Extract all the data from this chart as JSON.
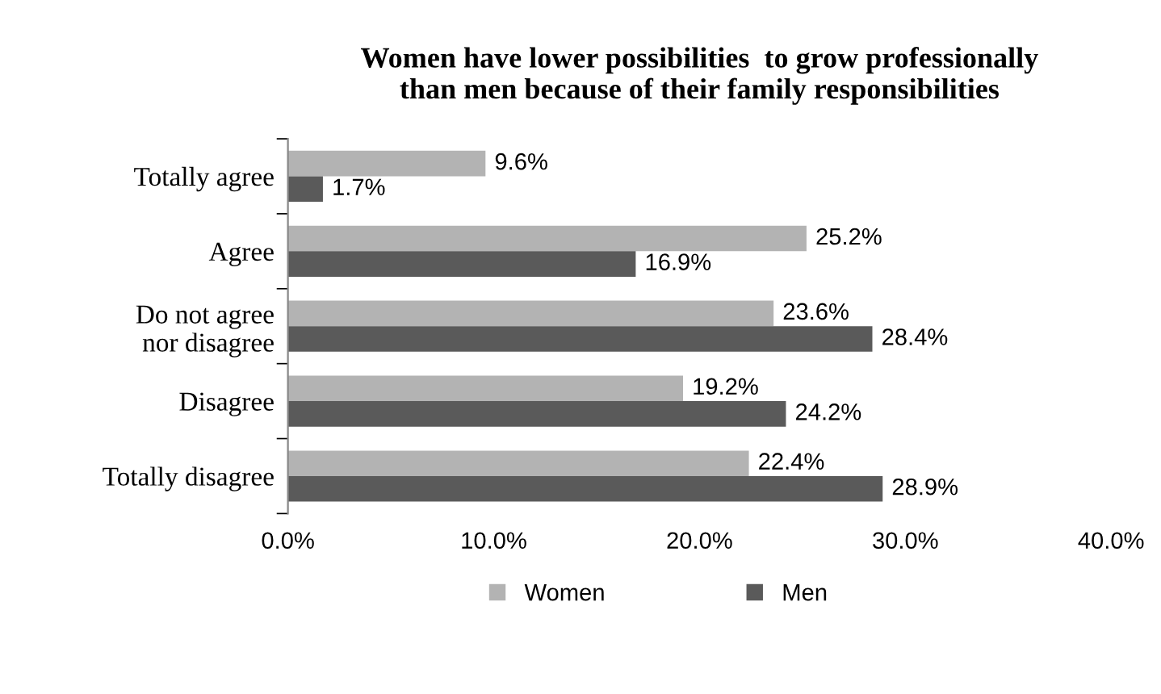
{
  "chart_data": {
    "type": "bar",
    "orientation": "horizontal",
    "title": "Women have lower possibilities  to grow professionally\nthan men because of their family responsibilities",
    "categories": [
      "Totally agree",
      "Agree",
      "Do not agree\nnor disagree",
      "Disagree",
      "Totally disagree"
    ],
    "series": [
      {
        "name": "Women",
        "color": "#b3b3b3",
        "values": [
          9.6,
          25.2,
          23.6,
          19.2,
          22.4
        ],
        "value_labels": [
          "9.6%",
          "25.2%",
          "23.6%",
          "19.2%",
          "22.4%"
        ]
      },
      {
        "name": "Men",
        "color": "#5a5a5a",
        "values": [
          1.7,
          16.9,
          28.4,
          24.2,
          28.9
        ],
        "value_labels": [
          "1.7%",
          "16.9%",
          "28.4%",
          "24.2%",
          "28.9%"
        ]
      }
    ],
    "xlim": [
      0,
      40
    ],
    "xticks": [
      {
        "value": 0,
        "label": "0.0%"
      },
      {
        "value": 10,
        "label": "10.0%"
      },
      {
        "value": 20,
        "label": "20.0%"
      },
      {
        "value": 30,
        "label": "30.0%"
      },
      {
        "value": 40,
        "label": "40.0%"
      }
    ],
    "grid": false,
    "legend": "bottom"
  }
}
